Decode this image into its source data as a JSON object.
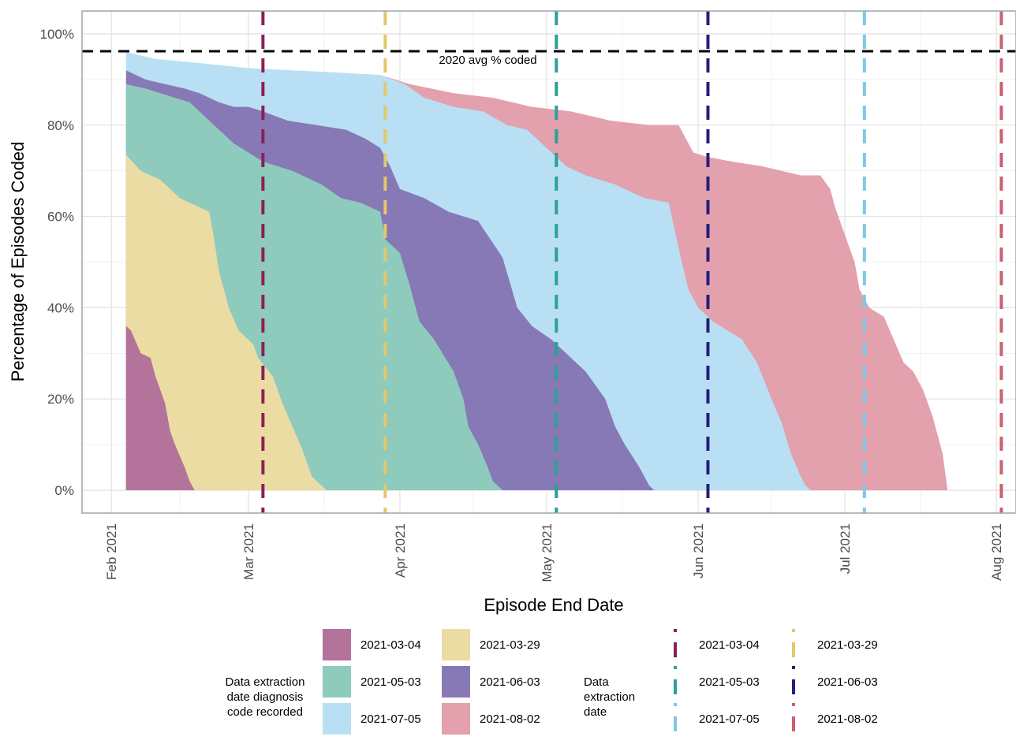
{
  "chart_data": {
    "type": "area",
    "title": "",
    "xlabel": "Episode End Date",
    "ylabel": "Percentage of Episodes Coded",
    "x_ticks": [
      "Feb 2021",
      "Mar 2021",
      "Apr 2021",
      "May 2021",
      "Jun 2021",
      "Jul 2021",
      "Aug 2021"
    ],
    "y_ticks": [
      "0%",
      "20%",
      "40%",
      "60%",
      "80%",
      "100%"
    ],
    "xlim": [
      "2021-01-26",
      "2021-08-05"
    ],
    "ylim": [
      -5,
      105
    ],
    "grid": true,
    "legend_position": "bottom",
    "reference_line": {
      "y": 96.2,
      "label": "2020 avg % coded"
    },
    "fill_legend_title": "Data extraction\ndate diagnosis\ncode recorded",
    "line_legend_title": "Data\nextraction\ndate",
    "series": [
      {
        "name": "2021-03-04",
        "color": "#b3739a",
        "points": [
          [
            "2021-02-04",
            0
          ],
          [
            "2021-02-04",
            36
          ],
          [
            "2021-02-05",
            35
          ],
          [
            "2021-02-07",
            30
          ],
          [
            "2021-02-09",
            29
          ],
          [
            "2021-02-10",
            25
          ],
          [
            "2021-02-12",
            19
          ],
          [
            "2021-02-13",
            13
          ],
          [
            "2021-02-14",
            10
          ],
          [
            "2021-02-16",
            5
          ],
          [
            "2021-02-17",
            2
          ],
          [
            "2021-02-18",
            0
          ]
        ]
      },
      {
        "name": "2021-03-29",
        "color": "#ebdca4",
        "points": [
          [
            "2021-02-04",
            0
          ],
          [
            "2021-02-04",
            73.5
          ],
          [
            "2021-02-07",
            70
          ],
          [
            "2021-02-11",
            68
          ],
          [
            "2021-02-15",
            64
          ],
          [
            "2021-02-21",
            61
          ],
          [
            "2021-02-22",
            55
          ],
          [
            "2021-02-23",
            48
          ],
          [
            "2021-02-25",
            40
          ],
          [
            "2021-02-27",
            35
          ],
          [
            "2021-03-02",
            32
          ],
          [
            "2021-03-03",
            29
          ],
          [
            "2021-03-06",
            25
          ],
          [
            "2021-03-08",
            19
          ],
          [
            "2021-03-10",
            14
          ],
          [
            "2021-03-12",
            9
          ],
          [
            "2021-03-13",
            6
          ],
          [
            "2021-03-14",
            3
          ],
          [
            "2021-03-16",
            1
          ],
          [
            "2021-03-17",
            0
          ]
        ]
      },
      {
        "name": "2021-05-03",
        "color": "#8ecbbd",
        "points": [
          [
            "2021-02-04",
            0
          ],
          [
            "2021-02-04",
            89
          ],
          [
            "2021-02-08",
            88
          ],
          [
            "2021-02-14",
            86
          ],
          [
            "2021-02-17",
            85
          ],
          [
            "2021-02-20",
            82
          ],
          [
            "2021-02-23",
            79
          ],
          [
            "2021-02-26",
            76
          ],
          [
            "2021-03-01",
            74
          ],
          [
            "2021-03-04",
            72
          ],
          [
            "2021-03-10",
            70
          ],
          [
            "2021-03-16",
            67
          ],
          [
            "2021-03-20",
            64
          ],
          [
            "2021-03-24",
            63
          ],
          [
            "2021-03-28",
            61
          ],
          [
            "2021-03-29",
            55
          ],
          [
            "2021-04-01",
            52
          ],
          [
            "2021-04-03",
            45
          ],
          [
            "2021-04-05",
            37
          ],
          [
            "2021-04-08",
            33
          ],
          [
            "2021-04-12",
            26
          ],
          [
            "2021-04-14",
            20
          ],
          [
            "2021-04-15",
            14
          ],
          [
            "2021-04-17",
            10
          ],
          [
            "2021-04-19",
            5
          ],
          [
            "2021-04-20",
            2
          ],
          [
            "2021-04-22",
            0
          ]
        ]
      },
      {
        "name": "2021-06-03",
        "color": "#8679b6",
        "points": [
          [
            "2021-02-04",
            0
          ],
          [
            "2021-02-04",
            92
          ],
          [
            "2021-02-08",
            90
          ],
          [
            "2021-02-12",
            89
          ],
          [
            "2021-02-16",
            88
          ],
          [
            "2021-02-19",
            87
          ],
          [
            "2021-02-23",
            85
          ],
          [
            "2021-02-26",
            84
          ],
          [
            "2021-03-01",
            84
          ],
          [
            "2021-03-04",
            83
          ],
          [
            "2021-03-09",
            81
          ],
          [
            "2021-03-15",
            80
          ],
          [
            "2021-03-21",
            79
          ],
          [
            "2021-03-25",
            77
          ],
          [
            "2021-03-28",
            75
          ],
          [
            "2021-03-30",
            71
          ],
          [
            "2021-04-01",
            66
          ],
          [
            "2021-04-06",
            64
          ],
          [
            "2021-04-11",
            61
          ],
          [
            "2021-04-17",
            59
          ],
          [
            "2021-04-22",
            51
          ],
          [
            "2021-04-25",
            40
          ],
          [
            "2021-04-28",
            36
          ],
          [
            "2021-05-02",
            33
          ],
          [
            "2021-05-05",
            30
          ],
          [
            "2021-05-09",
            26
          ],
          [
            "2021-05-13",
            20
          ],
          [
            "2021-05-15",
            14
          ],
          [
            "2021-05-17",
            10
          ],
          [
            "2021-05-20",
            5
          ],
          [
            "2021-05-22",
            1
          ],
          [
            "2021-05-23",
            0
          ]
        ]
      },
      {
        "name": "2021-07-05",
        "color": "#b9dff4",
        "points": [
          [
            "2021-02-04",
            0
          ],
          [
            "2021-02-04",
            96
          ],
          [
            "2021-02-10",
            94.5
          ],
          [
            "2021-02-20",
            93.5
          ],
          [
            "2021-03-01",
            92.5
          ],
          [
            "2021-03-10",
            92
          ],
          [
            "2021-03-20",
            91.5
          ],
          [
            "2021-03-28",
            91
          ],
          [
            "2021-04-02",
            89
          ],
          [
            "2021-04-06",
            86
          ],
          [
            "2021-04-12",
            84
          ],
          [
            "2021-04-18",
            83
          ],
          [
            "2021-04-23",
            80
          ],
          [
            "2021-04-27",
            79
          ],
          [
            "2021-05-01",
            75
          ],
          [
            "2021-05-05",
            71
          ],
          [
            "2021-05-09",
            69
          ],
          [
            "2021-05-15",
            67
          ],
          [
            "2021-05-21",
            64
          ],
          [
            "2021-05-26",
            63
          ],
          [
            "2021-05-28",
            53
          ],
          [
            "2021-05-30",
            44
          ],
          [
            "2021-06-01",
            40
          ],
          [
            "2021-06-04",
            37
          ],
          [
            "2021-06-07",
            35
          ],
          [
            "2021-06-10",
            33
          ],
          [
            "2021-06-13",
            28
          ],
          [
            "2021-06-16",
            20
          ],
          [
            "2021-06-18",
            15
          ],
          [
            "2021-06-20",
            8
          ],
          [
            "2021-06-22",
            3
          ],
          [
            "2021-06-23",
            1
          ],
          [
            "2021-06-24",
            0
          ]
        ]
      },
      {
        "name": "2021-08-02",
        "color": "#e3a0ad",
        "points": [
          [
            "2021-03-28",
            0
          ],
          [
            "2021-03-28",
            91
          ],
          [
            "2021-04-03",
            89
          ],
          [
            "2021-04-12",
            87
          ],
          [
            "2021-04-20",
            86
          ],
          [
            "2021-04-28",
            84
          ],
          [
            "2021-05-06",
            83
          ],
          [
            "2021-05-14",
            81
          ],
          [
            "2021-05-22",
            80
          ],
          [
            "2021-05-28",
            80
          ],
          [
            "2021-05-31",
            74
          ],
          [
            "2021-06-03",
            73
          ],
          [
            "2021-06-08",
            72
          ],
          [
            "2021-06-14",
            71
          ],
          [
            "2021-06-18",
            70
          ],
          [
            "2021-06-22",
            69
          ],
          [
            "2021-06-26",
            69
          ],
          [
            "2021-06-28",
            66
          ],
          [
            "2021-06-29",
            62
          ],
          [
            "2021-07-01",
            56
          ],
          [
            "2021-07-03",
            50
          ],
          [
            "2021-07-04",
            44
          ],
          [
            "2021-07-06",
            40
          ],
          [
            "2021-07-09",
            38
          ],
          [
            "2021-07-11",
            33
          ],
          [
            "2021-07-13",
            28
          ],
          [
            "2021-07-15",
            26
          ],
          [
            "2021-07-17",
            22
          ],
          [
            "2021-07-19",
            16
          ],
          [
            "2021-07-20",
            12
          ],
          [
            "2021-07-21",
            8
          ],
          [
            "2021-07-22",
            0
          ]
        ]
      }
    ],
    "extraction_lines": [
      {
        "name": "2021-03-04",
        "date": "2021-03-04",
        "color": "#8c1f57"
      },
      {
        "name": "2021-03-29",
        "date": "2021-03-29",
        "color": "#e3c76a"
      },
      {
        "name": "2021-05-03",
        "date": "2021-05-03",
        "color": "#2aa198"
      },
      {
        "name": "2021-06-03",
        "date": "2021-06-03",
        "color": "#241f7a"
      },
      {
        "name": "2021-07-05",
        "date": "2021-07-05",
        "color": "#7ec8e6"
      },
      {
        "name": "2021-08-02",
        "date": "2021-08-02",
        "color": "#c9616f"
      }
    ]
  }
}
